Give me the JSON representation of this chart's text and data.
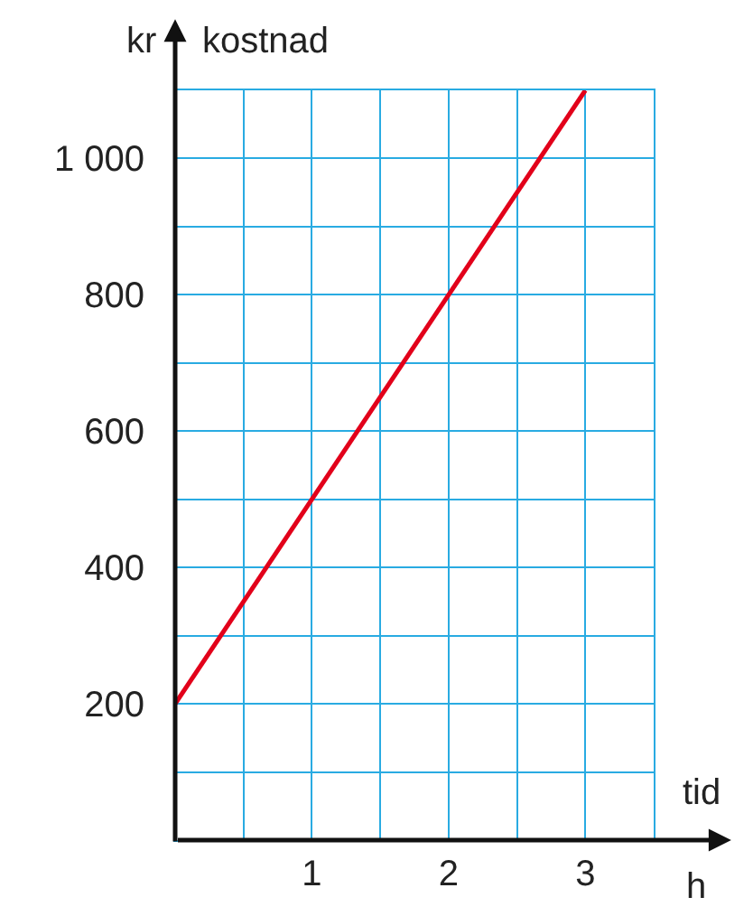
{
  "chart_data": {
    "type": "line",
    "ylabel": "kr",
    "xlabel": "h",
    "annotations": [
      "kostnad",
      "tid"
    ],
    "x": [
      0,
      3
    ],
    "series": [
      {
        "color": "#e2001a",
        "values": [
          200,
          1100
        ]
      }
    ],
    "xlim": [
      0,
      3.5
    ],
    "ylim": [
      0,
      1100
    ],
    "xticks": [
      {
        "value": 0.5,
        "label": null
      },
      1,
      {
        "value": 1.5,
        "label": null
      },
      2,
      {
        "value": 2.5,
        "label": null
      },
      3,
      {
        "value": 3.5,
        "label": null
      }
    ],
    "yticks": [
      {
        "value": 100,
        "label": null
      },
      200,
      {
        "value": 300,
        "label": null
      },
      400,
      {
        "value": 500,
        "label": null
      },
      600,
      {
        "value": 700,
        "label": null
      },
      800,
      {
        "value": 900,
        "label": null
      },
      {
        "value": 1000,
        "label": "1 000"
      },
      {
        "value": 1100,
        "label": null
      }
    ],
    "grid": true,
    "line_style": "solid",
    "marker": "none"
  }
}
